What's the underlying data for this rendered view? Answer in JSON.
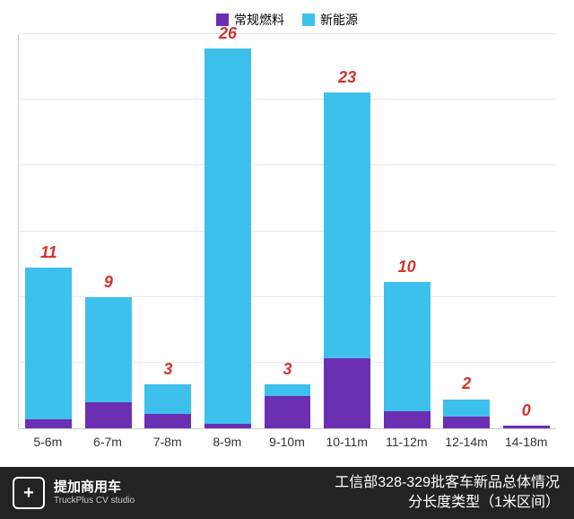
{
  "legend": {
    "items": [
      {
        "label": "常规燃料",
        "color": "#6b2fb3"
      },
      {
        "label": "新能源",
        "color": "#3ec0ed"
      }
    ]
  },
  "chart": {
    "type": "stacked-bar",
    "ylim": [
      0,
      27
    ],
    "grid_color": "#e8e8e8",
    "grid_count": 6,
    "border_color": "#cccccc",
    "background_color": "#ffffff",
    "bar_width_pct": 78,
    "label_color": "#d0342c",
    "label_fontsize": 18,
    "xtick_fontsize": 14,
    "categories": [
      "5-6m",
      "6-7m",
      "7-8m",
      "8-9m",
      "9-10m",
      "10-11m",
      "11-12m",
      "12-14m",
      "14-18m"
    ],
    "series": [
      {
        "name": "常规燃料",
        "color": "#6b2fb3",
        "values": [
          0.6,
          1.8,
          1.0,
          0.3,
          2.2,
          4.8,
          1.2,
          0.8,
          0.2
        ]
      },
      {
        "name": "新能源",
        "color": "#3ec0ed",
        "values": [
          10.4,
          7.2,
          2.0,
          25.7,
          0.8,
          18.2,
          8.8,
          1.2,
          0.0
        ]
      }
    ],
    "totals_label": [
      "11",
      "9",
      "3",
      "26",
      "3",
      "23",
      "10",
      "2",
      "0"
    ]
  },
  "footer": {
    "logo_glyph": "+",
    "brand": "提加商用车",
    "brand_sub": "TruckPlus CV studio",
    "title_line1": "工信部328-329批客车新品总体情况",
    "title_line2": "分长度类型（1米区间）",
    "background_color": "#232323",
    "text_color": "#ffffff"
  }
}
